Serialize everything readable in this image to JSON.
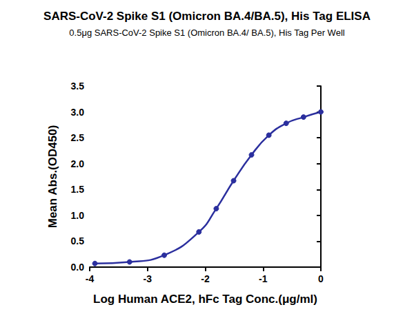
{
  "chart_data": {
    "type": "line",
    "title": "SARS-CoV-2 Spike S1 (Omicron BA.4/BA.5), His Tag ELISA",
    "subtitle": "0.5μg SARS-CoV-2 Spike S1 (Omicron BA.4/ BA.5), His Tag Per Well",
    "x_label": "Log Human ACE2, hFc Tag Conc.(μg/ml)",
    "y_label": "Mean Abs.(OD450)",
    "x": [
      -3.91,
      -3.31,
      -2.71,
      -2.11,
      -1.81,
      -1.51,
      -1.2,
      -0.9,
      -0.6,
      -0.3,
      0
    ],
    "values": [
      0.07,
      0.1,
      0.23,
      0.68,
      1.13,
      1.67,
      2.17,
      2.55,
      2.78,
      2.9,
      3.0
    ],
    "color": "#2b2f9e",
    "marker": "circle",
    "xlim": [
      -4,
      0
    ],
    "xticks": [
      -4,
      -3,
      -2,
      -1,
      0
    ],
    "ylim": [
      0,
      3.5
    ],
    "yticks": [
      {
        "value": 0,
        "label": "0.0"
      },
      0.5,
      {
        "value": 1,
        "label": "1.0"
      },
      1.5,
      {
        "value": 2,
        "label": "2.0"
      },
      2.5,
      {
        "value": 3,
        "label": "3.0"
      },
      3.5
    ],
    "grid": false
  }
}
